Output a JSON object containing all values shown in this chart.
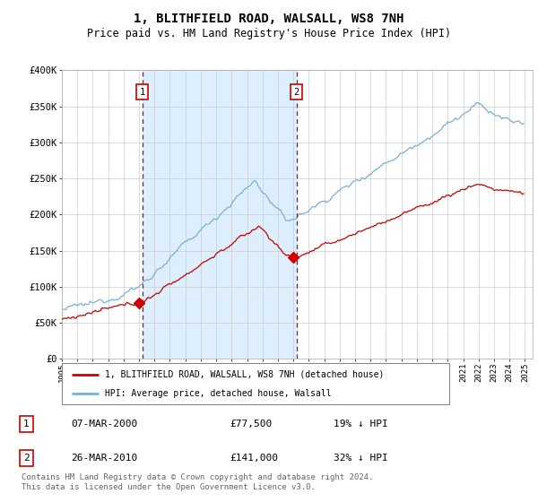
{
  "title": "1, BLITHFIELD ROAD, WALSALL, WS8 7NH",
  "subtitle": "Price paid vs. HM Land Registry's House Price Index (HPI)",
  "title_fontsize": 10,
  "subtitle_fontsize": 8.5,
  "background_color": "#ffffff",
  "plot_bg_color": "#ffffff",
  "grid_color": "#cccccc",
  "highlight_bg_color": "#ddeeff",
  "red_line_color": "#cc0000",
  "blue_line_color": "#7ab0d4",
  "legend_label_red": "1, BLITHFIELD ROAD, WALSALL, WS8 7NH (detached house)",
  "legend_label_blue": "HPI: Average price, detached house, Walsall",
  "vline1_year": 2000.2,
  "vline2_year": 2010.2,
  "marker1_value": 77500,
  "marker2_value": 141000,
  "table_row1": [
    "1",
    "07-MAR-2000",
    "£77,500",
    "19% ↓ HPI"
  ],
  "table_row2": [
    "2",
    "26-MAR-2010",
    "£141,000",
    "32% ↓ HPI"
  ],
  "footer": "Contains HM Land Registry data © Crown copyright and database right 2024.\nThis data is licensed under the Open Government Licence v3.0.",
  "ylim": [
    0,
    400000
  ],
  "yticks": [
    0,
    50000,
    100000,
    150000,
    200000,
    250000,
    300000,
    350000,
    400000
  ],
  "ytick_labels": [
    "£0",
    "£50K",
    "£100K",
    "£150K",
    "£200K",
    "£250K",
    "£300K",
    "£350K",
    "£400K"
  ],
  "xlim_start": 1995,
  "xlim_end": 2025.5
}
